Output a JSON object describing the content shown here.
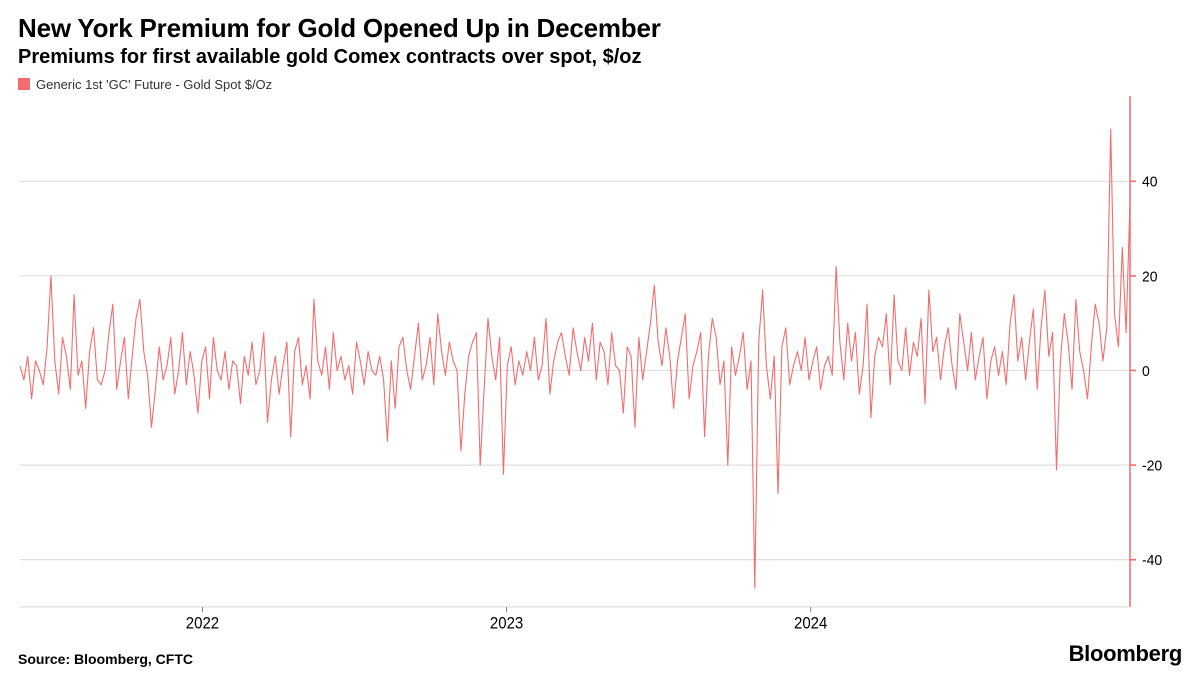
{
  "title": "New York Premium for Gold Opened Up in December",
  "subtitle": "Premiums for first available gold Comex contracts over spot, $/oz",
  "legend": {
    "series_label": "Generic 1st 'GC' Future - Gold Spot $/Oz",
    "swatch_color": "#f26d6d"
  },
  "chart": {
    "type": "line",
    "series_color": "#f26d6d",
    "axis_color": "#f26d6d",
    "grid_color": "#dcdcdc",
    "background_color": "#ffffff",
    "line_width": 1.1,
    "x": {
      "start_year": 2021.4,
      "end_year": 2025.05,
      "ticks": [
        2022,
        2023,
        2024
      ],
      "tick_labels": [
        "2022",
        "2023",
        "2024"
      ]
    },
    "y": {
      "min": -50,
      "max": 58,
      "ticks": [
        -40,
        -20,
        0,
        20,
        40
      ],
      "tick_labels": [
        "-40",
        "-20",
        "0",
        "20",
        "40"
      ],
      "axis_side": "right"
    },
    "values": [
      1,
      -2,
      3,
      -6,
      2,
      0,
      -3,
      5,
      20,
      2,
      -5,
      7,
      3,
      -4,
      16,
      -1,
      2,
      -8,
      4,
      9,
      -2,
      -3,
      0,
      8,
      14,
      -4,
      2,
      7,
      -6,
      3,
      11,
      15,
      4,
      -1,
      -12,
      -4,
      5,
      -2,
      1,
      7,
      -5,
      0,
      8,
      -3,
      4,
      -1,
      -9,
      2,
      5,
      -6,
      7,
      0,
      -2,
      4,
      -4,
      2,
      1,
      -7,
      3,
      -1,
      6,
      -3,
      0,
      8,
      -11,
      -2,
      3,
      -5,
      1,
      6,
      -14,
      4,
      7,
      -3,
      1,
      -6,
      15,
      2,
      -1,
      5,
      -4,
      8,
      0,
      3,
      -2,
      1,
      -5,
      6,
      2,
      -3,
      4,
      0,
      -1,
      3,
      -2,
      -15,
      2,
      -8,
      5,
      7,
      0,
      -4,
      3,
      10,
      -2,
      1,
      7,
      -3,
      12,
      4,
      -1,
      6,
      2,
      0,
      -17,
      -5,
      3,
      6,
      8,
      -20,
      -4,
      11,
      3,
      -2,
      7,
      -22,
      1,
      5,
      -3,
      2,
      -1,
      4,
      0,
      7,
      -2,
      1,
      11,
      -5,
      2,
      6,
      8,
      3,
      -1,
      9,
      4,
      0,
      7,
      2,
      10,
      -2,
      6,
      4,
      -3,
      8,
      1,
      0,
      -9,
      5,
      3,
      -12,
      7,
      -2,
      4,
      10,
      18,
      6,
      1,
      9,
      3,
      -8,
      2,
      7,
      12,
      -6,
      1,
      4,
      8,
      -14,
      3,
      11,
      7,
      -3,
      2,
      -20,
      5,
      -1,
      3,
      8,
      -4,
      2,
      -46,
      6,
      17,
      1,
      -6,
      3,
      -26,
      5,
      9,
      -3,
      1,
      4,
      0,
      7,
      -2,
      2,
      5,
      -4,
      1,
      3,
      -1,
      22,
      6,
      -2,
      10,
      2,
      8,
      -5,
      1,
      14,
      -10,
      3,
      7,
      5,
      12,
      -3,
      16,
      2,
      0,
      9,
      -1,
      6,
      3,
      11,
      -7,
      17,
      4,
      7,
      -2,
      5,
      9,
      1,
      -4,
      12,
      6,
      0,
      8,
      -2,
      3,
      7,
      -6,
      2,
      5,
      -1,
      4,
      -3,
      10,
      16,
      2,
      7,
      -2,
      6,
      13,
      -4,
      9,
      17,
      3,
      8,
      -21,
      2,
      12,
      6,
      -4,
      15,
      4,
      0,
      -6,
      5,
      14,
      10,
      2,
      9,
      51,
      12,
      5,
      26,
      8,
      36
    ]
  },
  "footer": {
    "source": "Source: Bloomberg, CFTC",
    "brand": "Bloomberg"
  }
}
